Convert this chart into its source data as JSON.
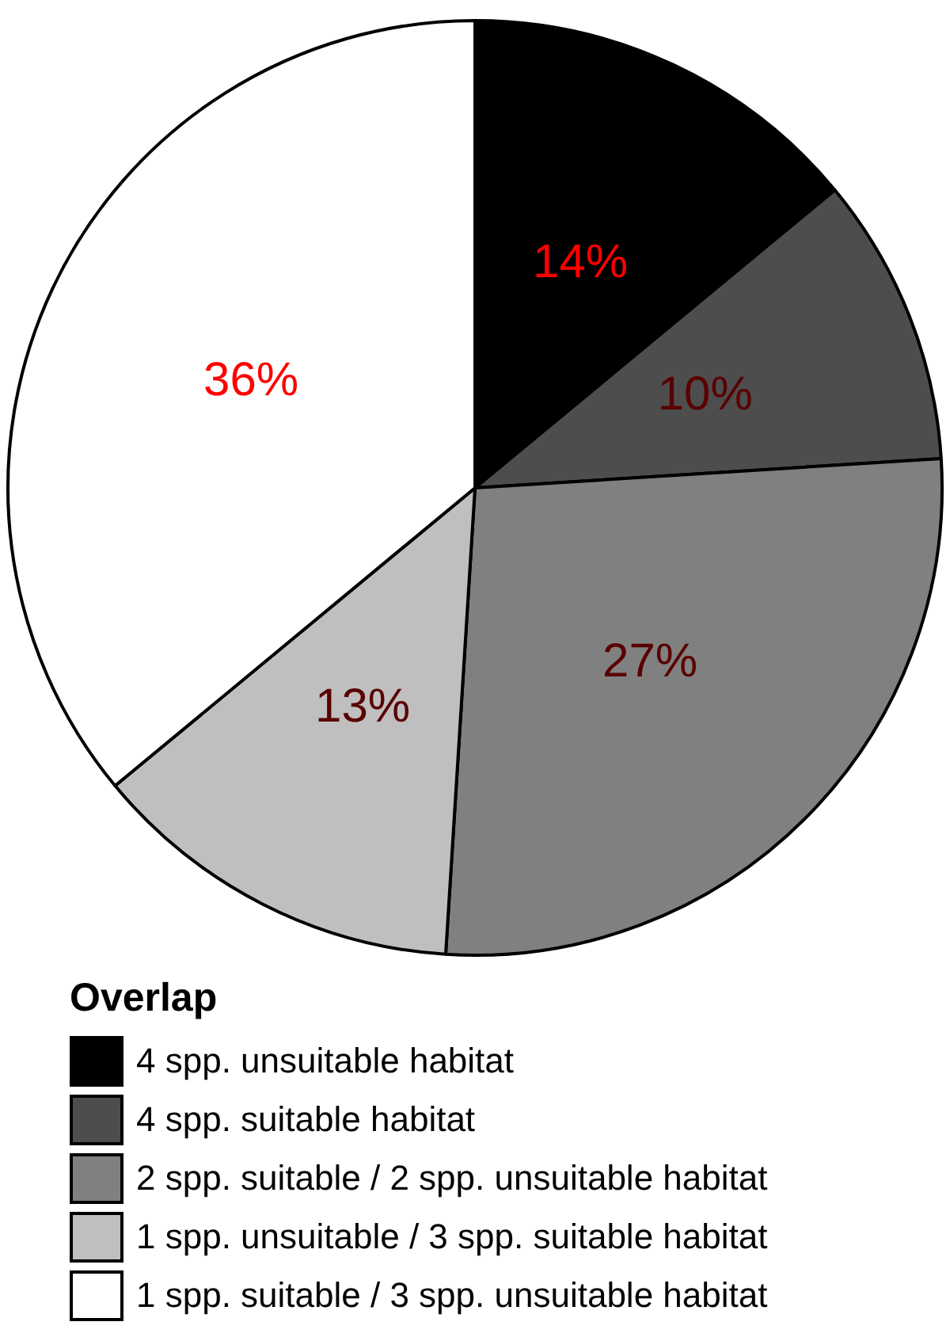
{
  "chart_data": {
    "type": "pie",
    "legend_title": "Overlap",
    "categories": [
      "4 spp. unsuitable habitat",
      "4 spp. suitable habitat",
      "2 spp. suitable / 2 spp. unsuitable habitat",
      "1 spp. unsuitable / 3 spp. suitable habitat",
      "1 spp. suitable / 3 spp. unsuitable habitat"
    ],
    "values": [
      14,
      10,
      27,
      13,
      36
    ],
    "colors": [
      "#000000",
      "#4d4d4d",
      "#808080",
      "#bfbfbf",
      "#ffffff"
    ],
    "value_labels": [
      "14%",
      "10%",
      "27%",
      "13%",
      "36%"
    ],
    "legend": "bottom"
  }
}
